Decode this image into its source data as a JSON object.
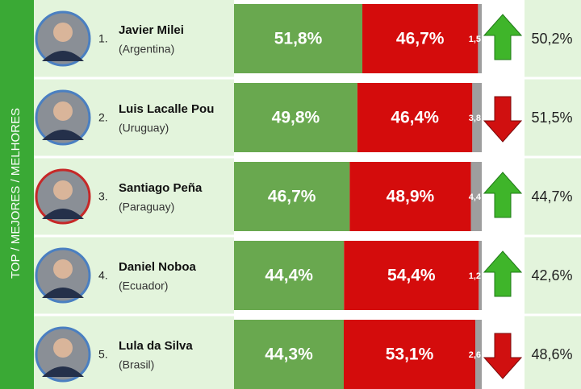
{
  "side_label": "TOP / MEJORES / MELHORES",
  "chart_data": {
    "type": "bar",
    "orientation": "horizontal",
    "stacked": true,
    "categories": [
      "Javier Milei",
      "Luis Lacalle Pou",
      "Santiago Peña",
      "Daniel Noboa",
      "Lula da Silva"
    ],
    "ranks": [
      "1.",
      "2.",
      "3.",
      "4.",
      "5."
    ],
    "countries": [
      "(Argentina)",
      "(Uruguay)",
      "(Paraguay)",
      "(Ecuador)",
      "(Brasil)"
    ],
    "trends": [
      "up",
      "down",
      "up",
      "up",
      "down"
    ],
    "previous": [
      "50,2%",
      "51,5%",
      "44,7%",
      "42,6%",
      "48,6%"
    ],
    "xlim": [
      0,
      100
    ],
    "series": [
      {
        "color": "#69a84f",
        "values": [
          51.8,
          49.8,
          46.7,
          44.4,
          44.3
        ],
        "value_labels": [
          "51,8%",
          "49,8%",
          "46,7%",
          "44,4%",
          "44,3%"
        ]
      },
      {
        "color": "#d40c0c",
        "values": [
          46.7,
          46.4,
          48.9,
          54.4,
          53.1
        ],
        "value_labels": [
          "46,7%",
          "46,4%",
          "48,9%",
          "54,4%",
          "53,1%"
        ]
      },
      {
        "color": "#9e9e9e",
        "values": [
          1.5,
          3.8,
          4.4,
          1.2,
          2.6
        ],
        "value_labels": [
          "1,5",
          "3,8",
          "4,4",
          "1,2",
          "2,6"
        ]
      }
    ]
  }
}
